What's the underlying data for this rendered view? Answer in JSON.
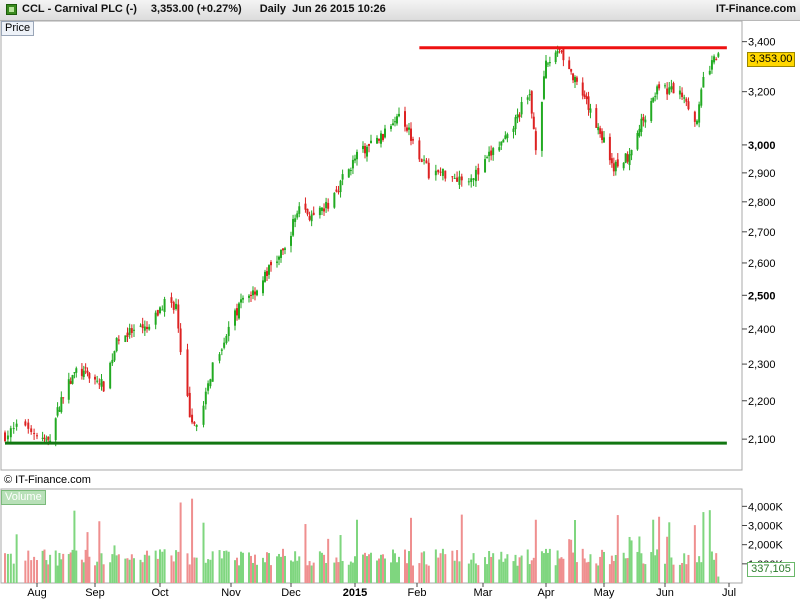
{
  "header": {
    "symbol": "CCL",
    "name": "Carnival PLC (-)",
    "price_change": "3,353.00 (+0.27%)",
    "period": "Daily",
    "datetime": "Jun 26 2015 10:26",
    "brand": "IT-Finance.com"
  },
  "panels": {
    "price_label": "Price",
    "volume_label": "Volume"
  },
  "copyright": "© IT-Finance.com",
  "badges": {
    "last_price": "3,353.00",
    "last_volume": "337,105"
  },
  "colors": {
    "up": "#22aa22",
    "down": "#dd2222",
    "vol_up": "#7fd67f",
    "vol_down": "#ef8f8f",
    "resistance": "#ee1111",
    "support": "#117711",
    "price_badge": "#ffd700"
  },
  "chart_data": [
    {
      "type": "candlestick",
      "title": "CCL - Carnival PLC (-)",
      "scale": "log",
      "x_tick_labels": [
        "Aug",
        "Sep",
        "Oct",
        "Nov",
        "Dec",
        "2015",
        "Feb",
        "Mar",
        "Apr",
        "May",
        "Jun",
        "Jul"
      ],
      "y_tick_labels": [
        "3,400",
        "3,200",
        "3,000",
        "2,900",
        "2,800",
        "2,700",
        "2,600",
        "2,500",
        "2,400",
        "2,300",
        "2,200",
        "2,100"
      ],
      "y_ticks": [
        3400,
        3200,
        3000,
        2900,
        2800,
        2700,
        2600,
        2500,
        2400,
        2300,
        2200,
        2100
      ],
      "ylim": [
        2060,
        3440
      ],
      "close_path": [
        {
          "date": "2014-07-21",
          "close": 2110
        },
        {
          "date": "2014-07-28",
          "close": 2140
        },
        {
          "date": "2014-08-01",
          "close": 2110
        },
        {
          "date": "2014-08-07",
          "close": 2090
        },
        {
          "date": "2014-08-15",
          "close": 2220
        },
        {
          "date": "2014-08-22",
          "close": 2280
        },
        {
          "date": "2014-08-29",
          "close": 2270
        },
        {
          "date": "2014-09-05",
          "close": 2240
        },
        {
          "date": "2014-09-12",
          "close": 2380
        },
        {
          "date": "2014-09-19",
          "close": 2390
        },
        {
          "date": "2014-09-26",
          "close": 2400
        },
        {
          "date": "2014-10-03",
          "close": 2480
        },
        {
          "date": "2014-10-08",
          "close": 2470
        },
        {
          "date": "2014-10-10",
          "close": 2320
        },
        {
          "date": "2014-10-15",
          "close": 2130
        },
        {
          "date": "2014-10-20",
          "close": 2180
        },
        {
          "date": "2014-10-24",
          "close": 2300
        },
        {
          "date": "2014-10-31",
          "close": 2400
        },
        {
          "date": "2014-11-07",
          "close": 2490
        },
        {
          "date": "2014-11-14",
          "close": 2520
        },
        {
          "date": "2014-11-21",
          "close": 2590
        },
        {
          "date": "2014-11-28",
          "close": 2640
        },
        {
          "date": "2014-12-05",
          "close": 2790
        },
        {
          "date": "2014-12-12",
          "close": 2740
        },
        {
          "date": "2014-12-19",
          "close": 2790
        },
        {
          "date": "2014-12-26",
          "close": 2880
        },
        {
          "date": "2015-01-02",
          "close": 2960
        },
        {
          "date": "2015-01-09",
          "close": 3000
        },
        {
          "date": "2015-01-16",
          "close": 3040
        },
        {
          "date": "2015-01-23",
          "close": 3130
        },
        {
          "date": "2015-01-30",
          "close": 3020
        },
        {
          "date": "2015-02-06",
          "close": 2900
        },
        {
          "date": "2015-02-13",
          "close": 2900
        },
        {
          "date": "2015-02-20",
          "close": 2880
        },
        {
          "date": "2015-02-27",
          "close": 2900
        },
        {
          "date": "2015-03-06",
          "close": 2980
        },
        {
          "date": "2015-03-13",
          "close": 3020
        },
        {
          "date": "2015-03-20",
          "close": 3140
        },
        {
          "date": "2015-03-24",
          "close": 3180
        },
        {
          "date": "2015-03-27",
          "close": 3000
        },
        {
          "date": "2015-04-01",
          "close": 3300
        },
        {
          "date": "2015-04-08",
          "close": 3380
        },
        {
          "date": "2015-04-15",
          "close": 3250
        },
        {
          "date": "2015-04-22",
          "close": 3150
        },
        {
          "date": "2015-04-29",
          "close": 3050
        },
        {
          "date": "2015-05-06",
          "close": 2920
        },
        {
          "date": "2015-05-13",
          "close": 2960
        },
        {
          "date": "2015-05-20",
          "close": 3080
        },
        {
          "date": "2015-05-27",
          "close": 3200
        },
        {
          "date": "2015-06-03",
          "close": 3210
        },
        {
          "date": "2015-06-10",
          "close": 3190
        },
        {
          "date": "2015-06-16",
          "close": 3080
        },
        {
          "date": "2015-06-19",
          "close": 3250
        },
        {
          "date": "2015-06-26",
          "close": 3353
        }
      ],
      "lines": [
        {
          "kind": "horizontal",
          "color": "#ee1111",
          "value": 3375,
          "from": "2015-02-02",
          "to": "2015-06-30"
        },
        {
          "kind": "horizontal",
          "color": "#117711",
          "value": 2090,
          "from": "2014-07-21",
          "to": "2015-06-30"
        }
      ]
    },
    {
      "type": "bar",
      "title": "Volume",
      "y_tick_labels": [
        "4,000K",
        "3,000K",
        "2,000K",
        "1,000K"
      ],
      "y_ticks": [
        4000,
        3000,
        2000,
        1000
      ],
      "ylim": [
        0,
        4800
      ],
      "unit": "K"
    }
  ]
}
